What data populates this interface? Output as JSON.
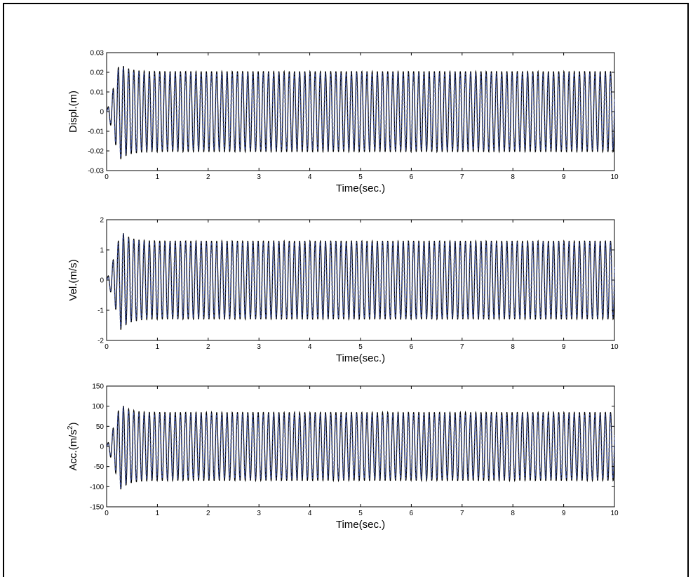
{
  "colors": {
    "signal_dark": "#000000",
    "signal_light": "#3a4ea0",
    "axes": "#000000",
    "background": "#ffffff"
  },
  "chart_data": [
    {
      "type": "line",
      "xlabel": "Time(sec.)",
      "ylabel": "Displ.(m)",
      "xlim": [
        0,
        10
      ],
      "ylim": [
        -0.03,
        0.03
      ],
      "xticks": [
        0,
        1,
        2,
        3,
        4,
        5,
        6,
        7,
        8,
        9,
        10
      ],
      "xtick_labels": [
        "0",
        "1",
        "2",
        "3",
        "4",
        "5",
        "6",
        "7",
        "8",
        "9",
        "10"
      ],
      "yticks": [
        -0.03,
        -0.02,
        -0.01,
        0,
        0.01,
        0.02,
        0.03
      ],
      "ytick_labels": [
        "-0.03",
        "-0.02",
        "-0.01",
        "0",
        "0.01",
        "0.02",
        "0.03"
      ],
      "grid": false,
      "series": [
        {
          "oscillation_frequency_hz": 9.8,
          "steady_amplitude": 0.0205,
          "peak_amplitude": 0.025,
          "peak_time": 0.25,
          "transient_decay": 2.5
        },
        {
          "oscillation_frequency_hz": 9.8,
          "steady_amplitude": 0.0195,
          "peak_amplitude": 0.024,
          "peak_time": 0.25,
          "transient_decay": 2.5
        }
      ]
    },
    {
      "type": "line",
      "xlabel": "Time(sec.)",
      "ylabel": "Vel.(m/s)",
      "xlim": [
        0,
        10
      ],
      "ylim": [
        -2,
        2
      ],
      "xticks": [
        0,
        1,
        2,
        3,
        4,
        5,
        6,
        7,
        8,
        9,
        10
      ],
      "xtick_labels": [
        "0",
        "1",
        "2",
        "3",
        "4",
        "5",
        "6",
        "7",
        "8",
        "9",
        "10"
      ],
      "yticks": [
        -2,
        -1,
        0,
        1,
        2
      ],
      "ytick_labels": [
        "-2",
        "-1",
        "0",
        "1",
        "2"
      ],
      "grid": false,
      "series": [
        {
          "oscillation_frequency_hz": 9.8,
          "steady_amplitude": 1.3,
          "peak_amplitude": 1.65,
          "peak_time": 0.28,
          "transient_decay": 2.5
        },
        {
          "oscillation_frequency_hz": 9.8,
          "steady_amplitude": 1.25,
          "peak_amplitude": 1.6,
          "peak_time": 0.28,
          "transient_decay": 2.5
        }
      ]
    },
    {
      "type": "line",
      "xlabel": "Time(sec.)",
      "ylabel": "Acc.(m/s",
      "ylabel_superscript": "2",
      "ylabel_suffix": ")",
      "xlim": [
        0,
        10
      ],
      "ylim": [
        -150,
        150
      ],
      "xticks": [
        0,
        1,
        2,
        3,
        4,
        5,
        6,
        7,
        8,
        9,
        10
      ],
      "xtick_labels": [
        "0",
        "1",
        "2",
        "3",
        "4",
        "5",
        "6",
        "7",
        "8",
        "9",
        "10"
      ],
      "yticks": [
        -150,
        -100,
        -50,
        0,
        50,
        100,
        150
      ],
      "ytick_labels": [
        "-150",
        "-100",
        "-50",
        "0",
        "50",
        "100",
        "150"
      ],
      "grid": false,
      "series": [
        {
          "oscillation_frequency_hz": 9.8,
          "steady_amplitude": 85,
          "peak_amplitude": 108,
          "peak_time": 0.27,
          "transient_decay": 2.5
        },
        {
          "oscillation_frequency_hz": 9.8,
          "steady_amplitude": 80,
          "peak_amplitude": 104,
          "peak_time": 0.27,
          "transient_decay": 2.5
        }
      ]
    }
  ]
}
